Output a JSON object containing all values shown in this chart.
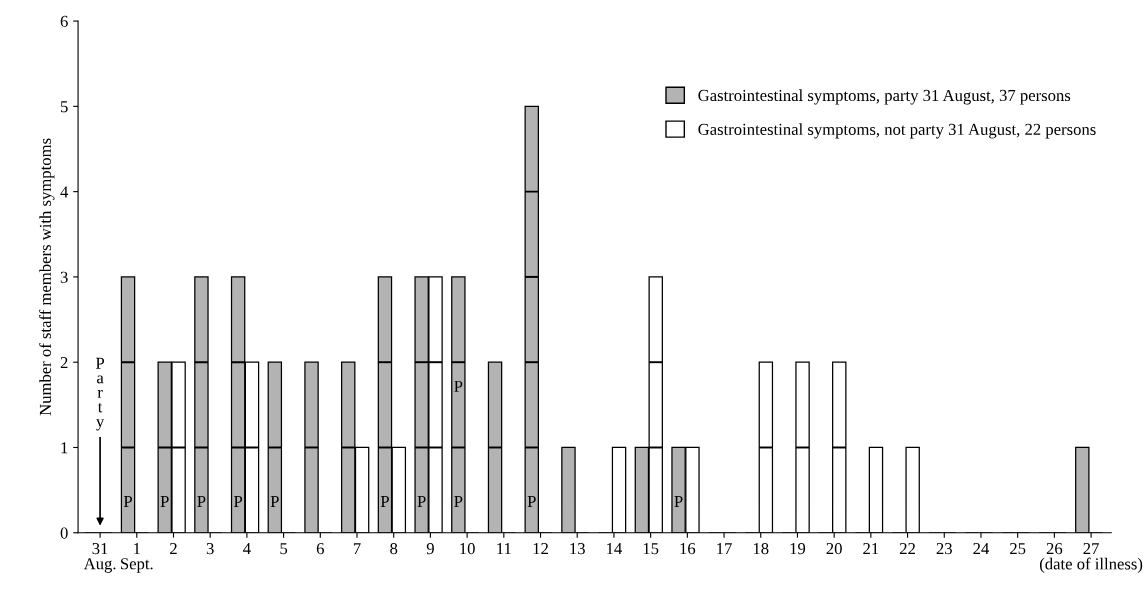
{
  "chart_data": {
    "type": "bar",
    "ylabel": "Number of staff members with symptoms",
    "categories": [
      "31\nAug.",
      "1\nSept.",
      "2",
      "3",
      "4",
      "5",
      "6",
      "7",
      "8",
      "9",
      "10",
      "11",
      "12",
      "13",
      "14",
      "15",
      "16",
      "17",
      "18",
      "19",
      "20",
      "21",
      "22",
      "23",
      "24",
      "25",
      "26",
      "27\n(date of illness)"
    ],
    "series": [
      {
        "name": "Gastrointestinal symptoms, party 31 August, 37 persons",
        "color": "#b3b3b3",
        "values": [
          0,
          3,
          2,
          3,
          3,
          2,
          2,
          2,
          3,
          3,
          3,
          2,
          5,
          1,
          0,
          1,
          1,
          0,
          0,
          0,
          0,
          0,
          0,
          0,
          0,
          0,
          0,
          1
        ]
      },
      {
        "name": "Gastrointestinal symptoms, not party 31 August, 22 persons",
        "color": "#ffffff",
        "values": [
          0,
          0,
          2,
          0,
          2,
          0,
          0,
          1,
          1,
          3,
          0,
          0,
          0,
          0,
          1,
          3,
          1,
          0,
          2,
          2,
          2,
          1,
          1,
          0,
          0,
          0,
          0,
          0
        ]
      }
    ],
    "ylim": [
      0,
      6
    ],
    "yticks": [
      0,
      1,
      2,
      3,
      4,
      5,
      6
    ],
    "legend": "top right",
    "grid": false,
    "annotations": [
      "Party",
      {
        "text": "P",
        "x": "1\nSept.",
        "y": 0.35
      },
      {
        "text": "P",
        "x": "2",
        "y": 0.35
      },
      {
        "text": "P",
        "x": "3",
        "y": 0.35
      },
      {
        "text": "P",
        "x": "4",
        "y": 0.35
      },
      {
        "text": "P",
        "x": "5",
        "y": 0.35
      },
      {
        "text": "P",
        "x": "8",
        "y": 0.35
      },
      {
        "text": "P",
        "x": "9",
        "y": 0.35
      },
      {
        "text": "P",
        "x": "10",
        "y": 0.35
      },
      {
        "text": "P",
        "x": "10",
        "y": 1.7
      },
      {
        "text": "P",
        "x": "12",
        "y": 0.35
      },
      {
        "text": "P",
        "x": "16",
        "y": 0.35
      }
    ]
  }
}
